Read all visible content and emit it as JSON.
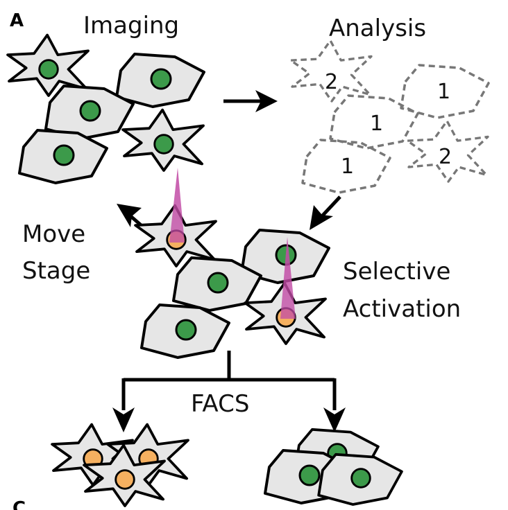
{
  "panel_label": "A",
  "next_panel_label": "C",
  "labels": {
    "imaging": "Imaging",
    "analysis": "Analysis",
    "move_line1": "Move",
    "move_line2": "Stage",
    "selective_line1": "Selective",
    "selective_line2": "Activation",
    "facs": "FACS"
  },
  "analysis_numbers": [
    "2",
    "1",
    "1",
    "1",
    "2"
  ],
  "colors": {
    "cell_fill": "#e6e6e6",
    "cell_outline": "#000000",
    "nucleus": "#3c9a4a",
    "activated_nucleus": "#f5b060",
    "beam": "#c24ca6",
    "dashed_outline": "#777777"
  }
}
